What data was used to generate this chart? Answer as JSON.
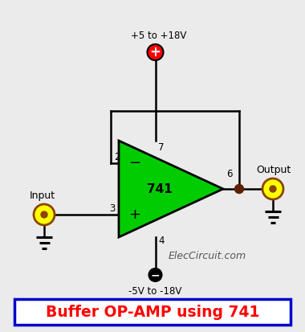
{
  "bg_color": "#ebebeb",
  "title_text": "Buffer OP-AMP using 741",
  "title_color": "#ff0000",
  "title_box_color": "#0000cc",
  "title_bg": "#ffffff",
  "opamp_color": "#00cc00",
  "opamp_outline": "#000000",
  "wire_color": "#000000",
  "vcc_circle_color": "#ff0000",
  "vss_circle_color": "#000000",
  "connector_fill": "#ffff00",
  "connector_outline": "#8B4500",
  "node_dot_color": "#5c2000",
  "watermark": "ElecCircuit.com",
  "vcc_label": "+5 to +18V",
  "vss_label": "-5V to -18V",
  "input_label": "Input",
  "output_label": "Output",
  "pin2_label": "2",
  "pin3_label": "3",
  "pin4_label": "4",
  "pin6_label": "6",
  "pin7_label": "7"
}
